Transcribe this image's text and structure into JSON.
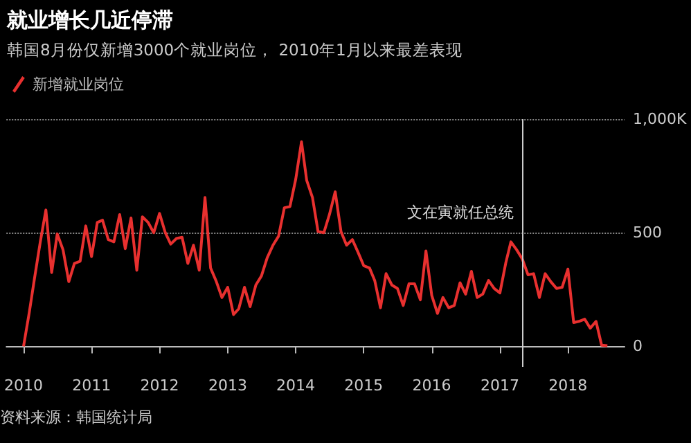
{
  "chart_data": {
    "type": "line",
    "title": "就业增长几近停滞",
    "subtitle": "韩国8月份仅新增3000个就业岗位， 2010年1月以来最差表现",
    "annotations": [
      "资料来源：韩国统计局"
    ],
    "x": [
      "2010-01",
      "2010-02",
      "2010-03",
      "2010-04",
      "2010-05",
      "2010-06",
      "2010-07",
      "2010-08",
      "2010-09",
      "2010-10",
      "2010-11",
      "2010-12",
      "2011-01",
      "2011-02",
      "2011-03",
      "2011-04",
      "2011-05",
      "2011-06",
      "2011-07",
      "2011-08",
      "2011-09",
      "2011-10",
      "2011-11",
      "2011-12",
      "2012-01",
      "2012-02",
      "2012-03",
      "2012-04",
      "2012-05",
      "2012-06",
      "2012-07",
      "2012-08",
      "2012-09",
      "2012-10",
      "2012-11",
      "2012-12",
      "2013-01",
      "2013-02",
      "2013-03",
      "2013-04",
      "2013-05",
      "2013-06",
      "2013-07",
      "2013-08",
      "2013-09",
      "2013-10",
      "2013-11",
      "2013-12",
      "2014-01",
      "2014-02",
      "2014-03",
      "2014-04",
      "2014-05",
      "2014-06",
      "2014-07",
      "2014-08",
      "2014-09",
      "2014-10",
      "2014-11",
      "2014-12",
      "2015-01",
      "2015-02",
      "2015-03",
      "2015-04",
      "2015-05",
      "2015-06",
      "2015-07",
      "2015-08",
      "2015-09",
      "2015-10",
      "2015-11",
      "2015-12",
      "2016-01",
      "2016-02",
      "2016-03",
      "2016-04",
      "2016-05",
      "2016-06",
      "2016-07",
      "2016-08",
      "2016-09",
      "2016-10",
      "2016-11",
      "2016-12",
      "2017-01",
      "2017-02",
      "2017-03",
      "2017-04",
      "2017-05",
      "2017-06",
      "2017-07",
      "2017-08",
      "2017-09",
      "2017-10",
      "2017-11",
      "2017-12",
      "2018-01",
      "2018-02",
      "2018-03",
      "2018-04",
      "2018-05",
      "2018-06",
      "2018-07",
      "2018-08"
    ],
    "series": [
      {
        "name": "新增就业岗位",
        "color": "#e8302f",
        "values": [
          0,
          150,
          300,
          460,
          600,
          325,
          495,
          425,
          285,
          365,
          375,
          530,
          395,
          545,
          555,
          470,
          460,
          580,
          430,
          565,
          335,
          570,
          545,
          500,
          585,
          500,
          450,
          475,
          480,
          365,
          445,
          335,
          655,
          345,
          285,
          215,
          260,
          140,
          165,
          260,
          175,
          270,
          310,
          390,
          445,
          485,
          610,
          615,
          735,
          900,
          730,
          655,
          505,
          500,
          580,
          680,
          505,
          445,
          470,
          415,
          355,
          345,
          290,
          170,
          320,
          270,
          255,
          180,
          275,
          275,
          205,
          420,
          225,
          145,
          215,
          170,
          180,
          280,
          230,
          330,
          215,
          230,
          290,
          255,
          235,
          365,
          460,
          425,
          385,
          315,
          320,
          215,
          320,
          285,
          255,
          260,
          340,
          105,
          110,
          120,
          80,
          110,
          5,
          3
        ]
      }
    ],
    "xlim": [
      "2009-10",
      "2018-11"
    ],
    "xticks": [
      "2010",
      "2011",
      "2012",
      "2013",
      "2014",
      "2015",
      "2016",
      "2017",
      "2018"
    ],
    "ylim": [
      -90,
      1000
    ],
    "yticks": [
      0,
      500,
      {
        "value": 1000,
        "label": "1,000K"
      }
    ],
    "grid": "y",
    "legend": "top left",
    "marker": "none",
    "line_style": "solid",
    "ref_lines": [
      {
        "axis": "x",
        "value": "2017-05",
        "label": "文在寅就任总统",
        "color": "#cccccc"
      }
    ]
  }
}
